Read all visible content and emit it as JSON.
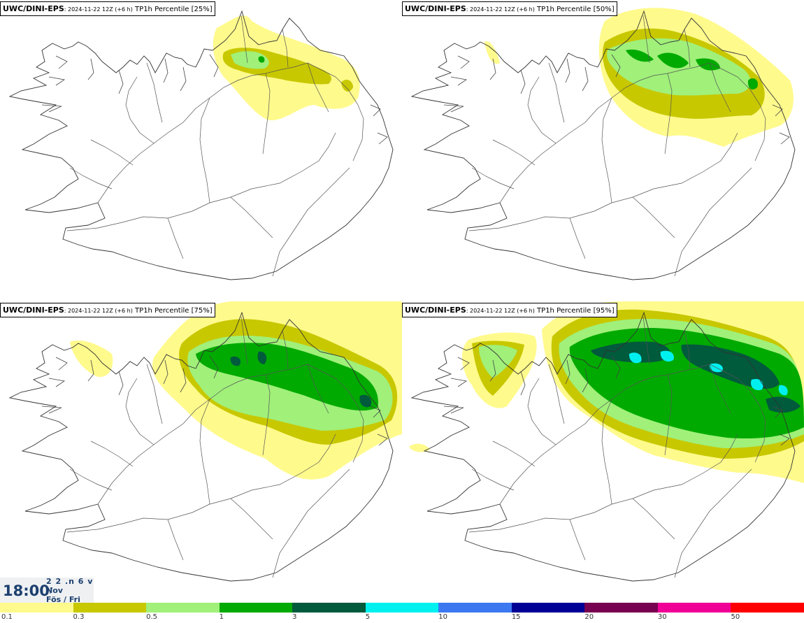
{
  "panels": [
    {
      "model": "UWC/DINI-EPS",
      "run": ": 2024-11-22 12Z (+6 h)",
      "field": " TP1h Percentile [25%]"
    },
    {
      "model": "UWC/DINI-EPS",
      "run": ": 2024-11-22 12Z (+6 h)",
      "field": " TP1h Percentile [50%]"
    },
    {
      "model": "UWC/DINI-EPS",
      "run": ": 2024-11-22 12Z (+6 h)",
      "field": " TP1h Percentile [75%]"
    },
    {
      "model": "UWC/DINI-EPS",
      "run": ": 2024-11-22 12Z (+6 h)",
      "field": " TP1h Percentile [95%]"
    }
  ],
  "valid_time": {
    "time": "18:00",
    "date_fragment": "2 2 .n 6 v ./",
    "month": "Nov",
    "day": "Fös / Fri"
  },
  "legend": {
    "colors": [
      "#fffa8c",
      "#c8c800",
      "#a0f07a",
      "#00aa00",
      "#005a3c",
      "#00f0f0",
      "#3c78f0",
      "#000096",
      "#780050",
      "#f00096",
      "#ff0000"
    ],
    "labels": [
      "0.1",
      "0.3",
      "0.5",
      "1",
      "3",
      "5",
      "10",
      "15",
      "20",
      "30",
      "50"
    ]
  }
}
